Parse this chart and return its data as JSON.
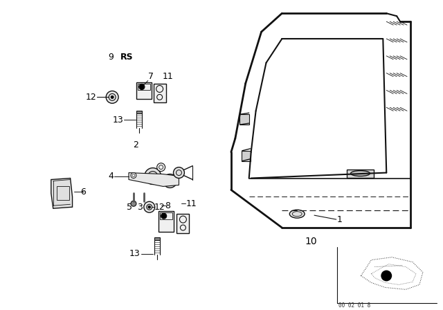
{
  "bg_color": "#ffffff",
  "fig_width": 6.4,
  "fig_height": 4.48,
  "dpi": 100,
  "diagram_number": "00 02 01 8",
  "lc": "#111111"
}
